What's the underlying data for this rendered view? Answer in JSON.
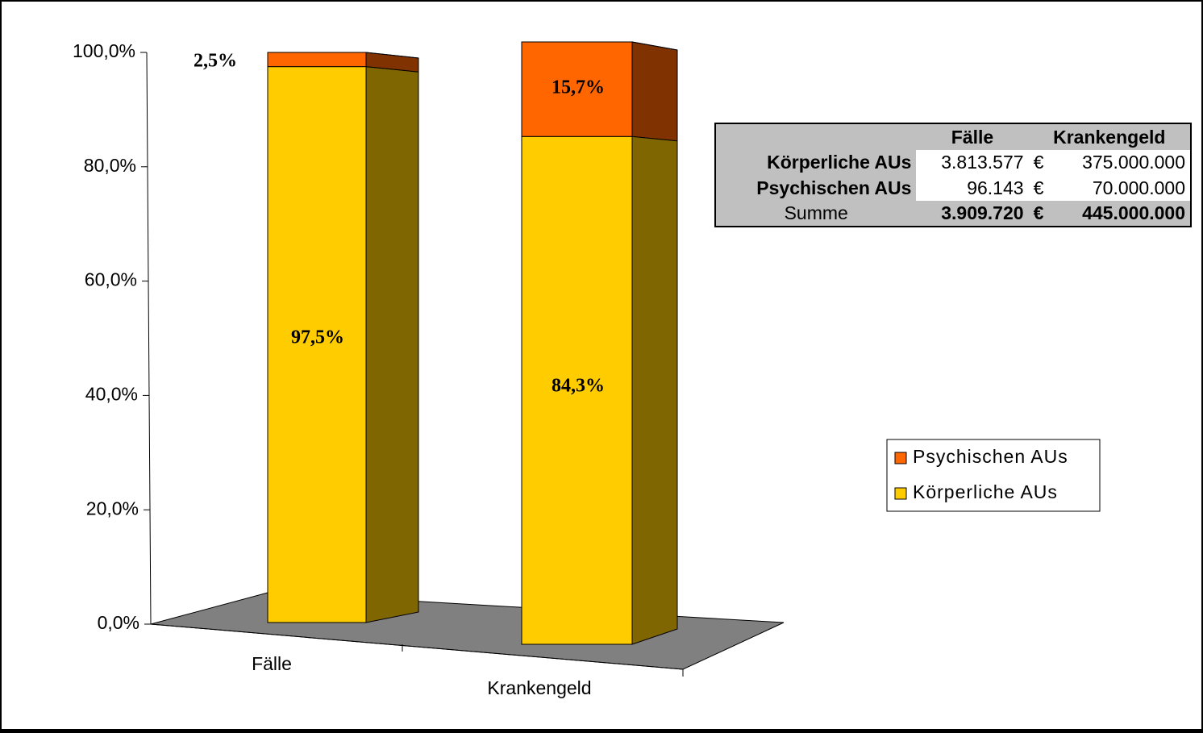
{
  "chart_data": {
    "type": "bar",
    "stacked": true,
    "categories": [
      "Fälle",
      "Krankengeld"
    ],
    "series": [
      {
        "name": "Körperliche AUs",
        "color": "#ffcc00",
        "side_color": "#806600",
        "values": [
          97.5,
          84.3
        ],
        "value_labels": [
          "97,5%",
          "84,3%"
        ]
      },
      {
        "name": "Psychischen AUs",
        "color": "#ff6600",
        "side_color": "#803300",
        "values": [
          2.5,
          15.7
        ],
        "value_labels": [
          "2,5%",
          "15,7%"
        ]
      }
    ],
    "ylim": [
      0,
      100
    ],
    "yticks": [
      {
        "value": 0,
        "label": "0,0%"
      },
      {
        "value": 20,
        "label": "20,0%"
      },
      {
        "value": 40,
        "label": "40,0%"
      },
      {
        "value": 60,
        "label": "60,0%"
      },
      {
        "value": 80,
        "label": "80,0%"
      },
      {
        "value": 100,
        "label": "100,0%"
      }
    ],
    "floor_color": "#808080"
  },
  "table": {
    "header": [
      "Fälle",
      "Krankengeld"
    ],
    "rows": [
      {
        "label": "Körperliche AUs",
        "cells": [
          "3.813.577",
          "€",
          "375.000.000"
        ]
      },
      {
        "label": "Psychischen AUs",
        "cells": [
          "96.143",
          "€",
          "70.000.000"
        ]
      },
      {
        "label": "Summe",
        "cells": [
          "3.909.720",
          "€",
          "445.000.000"
        ]
      }
    ]
  }
}
